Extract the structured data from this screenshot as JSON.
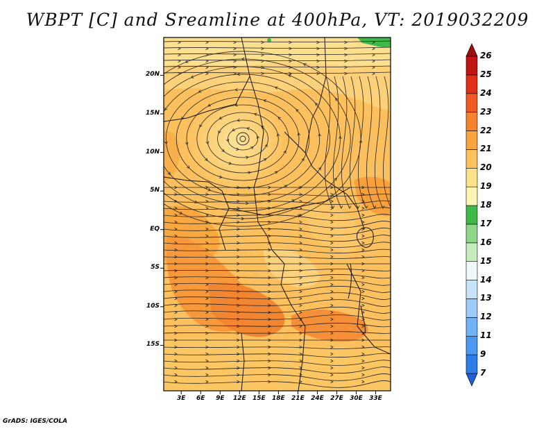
{
  "title": "WBPT [C] and Sreamline at 400hPa, VT: 2019032209",
  "credit": "GrADS: IGES/COLA",
  "map": {
    "lat_ticks": [
      {
        "label": "20N",
        "lat": 20
      },
      {
        "label": "15N",
        "lat": 15
      },
      {
        "label": "10N",
        "lat": 10
      },
      {
        "label": "5N",
        "lat": 5
      },
      {
        "label": "EQ",
        "lat": 0
      },
      {
        "label": "5S",
        "lat": -5
      },
      {
        "label": "10S",
        "lat": -10
      },
      {
        "label": "15S",
        "lat": -15
      }
    ],
    "lon_ticks": [
      {
        "label": "3E",
        "lon": 3
      },
      {
        "label": "6E",
        "lon": 6
      },
      {
        "label": "9E",
        "lon": 9
      },
      {
        "label": "12E",
        "lon": 12
      },
      {
        "label": "15E",
        "lon": 15
      },
      {
        "label": "18E",
        "lon": 18
      },
      {
        "label": "21E",
        "lon": 21
      },
      {
        "label": "24E",
        "lon": 24
      },
      {
        "label": "27E",
        "lon": 27
      },
      {
        "label": "30E",
        "lon": 30
      },
      {
        "label": "33E",
        "lon": 33
      }
    ],
    "lon_range": [
      0.3,
      35.3
    ],
    "lat_range": [
      -20.9,
      24.9
    ]
  },
  "colorbar": {
    "levels": [
      "7",
      "9",
      "11",
      "12",
      "13",
      "14",
      "15",
      "16",
      "17",
      "18",
      "19",
      "20",
      "21",
      "22",
      "23",
      "24",
      "25",
      "26"
    ],
    "colors": [
      "#1f5fd8",
      "#2f7ee8",
      "#4a98f0",
      "#6fb2f6",
      "#9ccbf8",
      "#c8e4fa",
      "#eef8fb",
      "#c6ecbd",
      "#8ed68a",
      "#3fb94a",
      "#fdf5b6",
      "#fde28a",
      "#fcc35e",
      "#f9a43e",
      "#f6822d",
      "#ef5a22",
      "#df2f18",
      "#c01510",
      "#9e0c0c"
    ]
  }
}
